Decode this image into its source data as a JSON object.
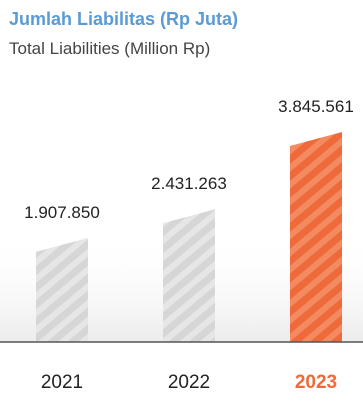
{
  "chart_data": {
    "type": "bar",
    "title": "Jumlah Liabilitas (Rp Juta)",
    "subtitle": "Total Liabilities (Million Rp)",
    "xlabel": "",
    "ylabel": "",
    "categories": [
      "2021",
      "2022",
      "2023"
    ],
    "values": [
      1907850,
      2431263,
      3845561
    ],
    "value_labels": [
      "1.907.850",
      "2.431.263",
      "3.845.561"
    ],
    "highlight_index": 2,
    "grid": false,
    "legend": "none"
  },
  "colors": {
    "title": "#5b9bd5",
    "subtitle": "#444444",
    "bar_default": "#d6d6d6",
    "bar_stripe": "#e6e6e6",
    "bar_highlight": "#ef6a3a",
    "bar_highlight_stripe": "#f38a60",
    "axis_line": "#555555",
    "year_label": "#222222",
    "year_highlight": "#ef6a3a",
    "value_label": "#222222"
  }
}
